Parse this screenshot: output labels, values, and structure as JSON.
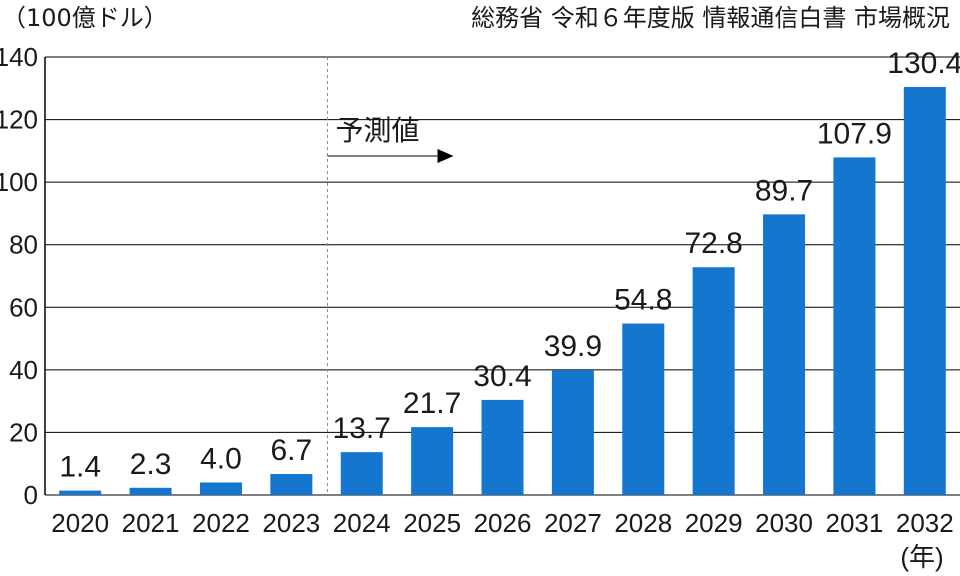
{
  "chart_data": {
    "type": "bar",
    "unit_label": "（100億ドル）",
    "source": "総務省 令和６年度版 情報通信白書 市場概況",
    "categories": [
      "2020",
      "2021",
      "2022",
      "2023",
      "2024",
      "2025",
      "2026",
      "2027",
      "2028",
      "2029",
      "2030",
      "2031",
      "2032"
    ],
    "values": [
      1.4,
      2.3,
      4.0,
      6.7,
      13.7,
      21.7,
      30.4,
      39.9,
      54.8,
      72.8,
      89.7,
      107.9,
      130.4
    ],
    "value_labels": [
      "1.4",
      "2.3",
      "4.0",
      "6.7",
      "13.7",
      "21.7",
      "30.4",
      "39.9",
      "54.8",
      "72.8",
      "89.7",
      "107.9",
      "130.4"
    ],
    "ylim": [
      0,
      140
    ],
    "yticks": [
      "0",
      "20",
      "40",
      "60",
      "80",
      "100",
      "120",
      "140"
    ],
    "xlabel_suffix": "(年)",
    "forecast_label": "予測値",
    "forecast_start_index": 4,
    "grid": true,
    "bar_color": "#1576cf"
  }
}
